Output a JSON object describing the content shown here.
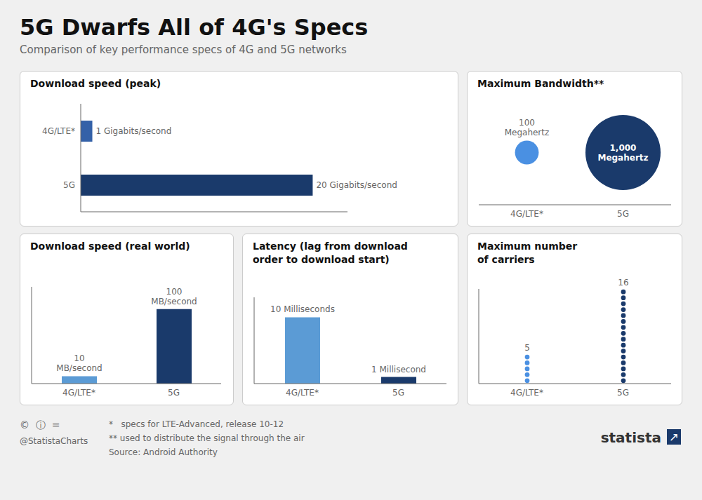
{
  "title": "5G Dwarfs All of 4G's Specs",
  "subtitle": "Comparison of key performance specs of 4G and 5G networks",
  "annotations": [
    "©  ⓘ  =",
    "@StatistaCharts",
    "*   specs for LTE-Advanced, release 10-12",
    "** used to distribute the signal through the air",
    "Source: Android Authority",
    "statista",
    "↗"
  ],
  "chart_data": [
    {
      "type": "bar",
      "orientation": "horizontal",
      "title": "Download speed (peak)",
      "categories": [
        "4G/LTE*",
        "5G"
      ],
      "values": [
        1,
        20
      ],
      "value_labels": [
        "1 Gigabits/second",
        "20 Gigabits/second"
      ],
      "colors": [
        "#3461a8",
        "#1a3a6b"
      ],
      "xlim": [
        0,
        23
      ],
      "data_labels": true,
      "tick_labels": "y",
      "grid": false
    },
    {
      "type": "bar",
      "title": "Download speed (real world)",
      "categories": [
        "4G/LTE*",
        "5G"
      ],
      "values": [
        10,
        100
      ],
      "value_labels": [
        "10\nMB/second",
        "100\nMB/second"
      ],
      "colors": [
        "#5b9bd5",
        "#1a3a6b"
      ],
      "ylim": [
        0,
        130
      ],
      "data_labels": true,
      "tick_labels": "x",
      "grid": false
    },
    {
      "type": "bar",
      "title": "Latency (lag from download\norder to download start)",
      "categories": [
        "4G/LTE*",
        "5G"
      ],
      "values": [
        10,
        1
      ],
      "value_labels": [
        "10 Milliseconds",
        "1 Millisecond"
      ],
      "colors": [
        "#5b9bd5",
        "#1a3a6b"
      ],
      "ylim": [
        0,
        13
      ],
      "data_labels": true,
      "tick_labels": "x",
      "grid": false
    },
    {
      "type": "bubble",
      "title": "Maximum Bandwidth**",
      "categories": [
        "4G/LTE*",
        "5G"
      ],
      "values": [
        100,
        1000
      ],
      "value_labels": [
        "100\nMegahertz",
        "1,000\nMegahertz"
      ],
      "colors": [
        "#4a90e2",
        "#1a3a6b"
      ],
      "data_labels": true,
      "tick_labels": "x",
      "grid": false
    },
    {
      "type": "dot",
      "title": "Maximum number\nof carriers",
      "categories": [
        "4G/LTE*",
        "5G"
      ],
      "values": [
        5,
        16
      ],
      "colors": [
        "#4a90e2",
        "#1a3a6b"
      ],
      "ylim": [
        0,
        16
      ],
      "data_labels": true,
      "tick_labels": "x",
      "grid": false
    }
  ]
}
